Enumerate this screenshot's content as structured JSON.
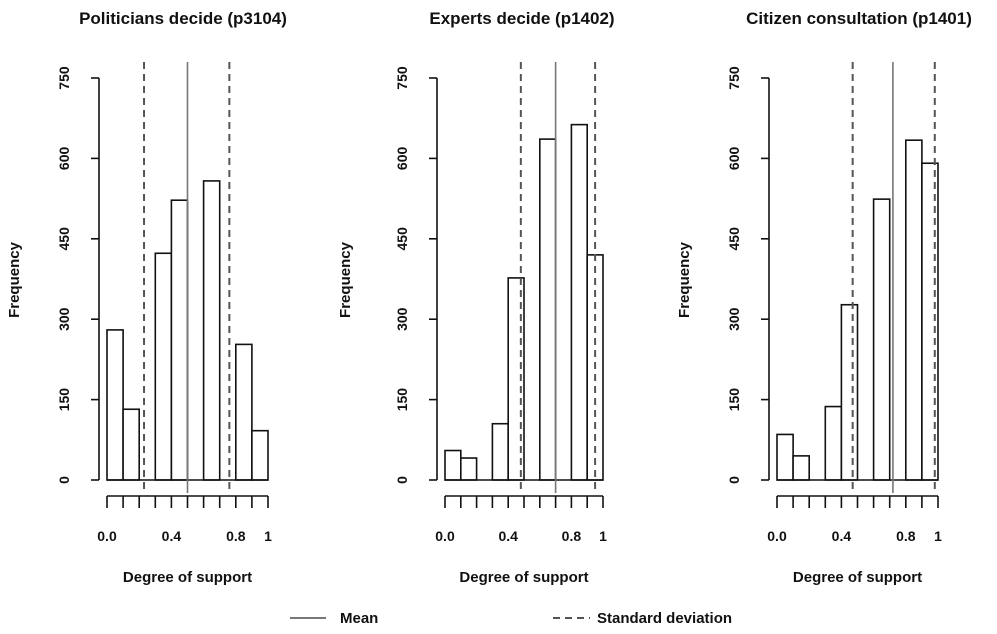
{
  "chart_data": [
    {
      "type": "bar",
      "title": "Politicians decide (p3104)",
      "xlabel": "Degree of support",
      "ylabel": "Frequency",
      "ylim": [
        0,
        750
      ],
      "y_ticks": [
        "0",
        "150",
        "300",
        "450",
        "600",
        "750"
      ],
      "xlim": [
        0,
        1
      ],
      "x_ticks": [
        {
          "value": 0.0,
          "label": "0.0"
        },
        {
          "value": 0.4,
          "label": "0.4"
        },
        {
          "value": 0.8,
          "label": "0.8"
        },
        {
          "value": 1.0,
          "label": "1"
        }
      ],
      "bins": [
        {
          "from": 0.0,
          "to": 0.1,
          "value": 280
        },
        {
          "from": 0.1,
          "to": 0.2,
          "value": 132
        },
        {
          "from": 0.3,
          "to": 0.4,
          "value": 423
        },
        {
          "from": 0.4,
          "to": 0.5,
          "value": 522
        },
        {
          "from": 0.6,
          "to": 0.7,
          "value": 558
        },
        {
          "from": 0.8,
          "to": 0.9,
          "value": 253
        },
        {
          "from": 0.9,
          "to": 1.0,
          "value": 92
        }
      ],
      "mean": 0.5,
      "sd_lines": [
        0.23,
        0.76
      ],
      "grid": false
    },
    {
      "type": "bar",
      "title": "Experts decide (p1402)",
      "xlabel": "Degree of support",
      "ylabel": "Frequency",
      "ylim": [
        0,
        750
      ],
      "y_ticks": [
        "0",
        "150",
        "300",
        "450",
        "600",
        "750"
      ],
      "xlim": [
        0,
        1
      ],
      "x_ticks": [
        {
          "value": 0.0,
          "label": "0.0"
        },
        {
          "value": 0.4,
          "label": "0.4"
        },
        {
          "value": 0.8,
          "label": "0.8"
        },
        {
          "value": 1.0,
          "label": "1"
        }
      ],
      "bins": [
        {
          "from": 0.0,
          "to": 0.1,
          "value": 55
        },
        {
          "from": 0.1,
          "to": 0.2,
          "value": 41
        },
        {
          "from": 0.3,
          "to": 0.4,
          "value": 105
        },
        {
          "from": 0.4,
          "to": 0.5,
          "value": 377
        },
        {
          "from": 0.6,
          "to": 0.7,
          "value": 636
        },
        {
          "from": 0.8,
          "to": 0.9,
          "value": 663
        },
        {
          "from": 0.9,
          "to": 1.0,
          "value": 420
        }
      ],
      "mean": 0.7,
      "sd_lines": [
        0.48,
        0.95
      ],
      "grid": false
    },
    {
      "type": "bar",
      "title": "Citizen consultation (p1401)",
      "xlabel": "Degree of support",
      "ylabel": "Frequency",
      "ylim": [
        0,
        750
      ],
      "y_ticks": [
        "0",
        "150",
        "300",
        "450",
        "600",
        "750"
      ],
      "xlim": [
        0,
        1
      ],
      "x_ticks": [
        {
          "value": 0.0,
          "label": "0.0"
        },
        {
          "value": 0.4,
          "label": "0.4"
        },
        {
          "value": 0.8,
          "label": "0.8"
        },
        {
          "value": 1.0,
          "label": "1"
        }
      ],
      "bins": [
        {
          "from": 0.0,
          "to": 0.1,
          "value": 85
        },
        {
          "from": 0.1,
          "to": 0.2,
          "value": 45
        },
        {
          "from": 0.3,
          "to": 0.4,
          "value": 137
        },
        {
          "from": 0.4,
          "to": 0.5,
          "value": 327
        },
        {
          "from": 0.6,
          "to": 0.7,
          "value": 524
        },
        {
          "from": 0.8,
          "to": 0.9,
          "value": 634
        },
        {
          "from": 0.9,
          "to": 1.0,
          "value": 591
        }
      ],
      "mean": 0.72,
      "sd_lines": [
        0.47,
        0.98
      ],
      "grid": false
    }
  ],
  "legend": {
    "placement": "bottom",
    "items": [
      {
        "label": "Mean",
        "style": "solid"
      },
      {
        "label": "Standard deviation",
        "style": "dashed"
      }
    ]
  },
  "colors": {
    "bar_fill": "#ffffff",
    "bar_stroke": "#111111",
    "axis": "#111111",
    "mean_line": "#777777",
    "sd_line": "#555555"
  }
}
